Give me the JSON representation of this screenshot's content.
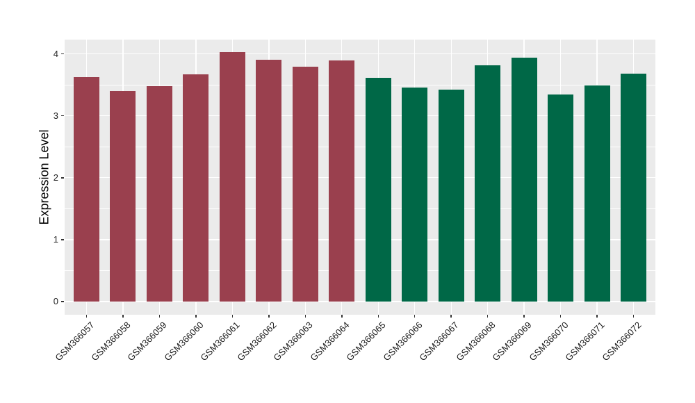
{
  "chart_data": {
    "type": "bar",
    "title": "",
    "xlabel": "",
    "ylabel": "Expression Level",
    "categories": [
      "GSM366057",
      "GSM366058",
      "GSM366059",
      "GSM366060",
      "GSM366061",
      "GSM366062",
      "GSM366063",
      "GSM366064",
      "GSM366065",
      "GSM366066",
      "GSM366067",
      "GSM366068",
      "GSM366069",
      "GSM366070",
      "GSM366071",
      "GSM366072"
    ],
    "values": [
      3.63,
      3.4,
      3.48,
      3.67,
      4.03,
      3.91,
      3.79,
      3.9,
      3.61,
      3.46,
      3.42,
      3.82,
      3.94,
      3.34,
      3.49,
      3.68
    ],
    "bar_colors": [
      "#9A404E",
      "#9A404E",
      "#9A404E",
      "#9A404E",
      "#9A404E",
      "#9A404E",
      "#9A404E",
      "#9A404E",
      "#006847",
      "#006847",
      "#006847",
      "#006847",
      "#006847",
      "#006847",
      "#006847",
      "#006847"
    ],
    "groups": [
      {
        "color": "#9A404E",
        "categories": [
          "GSM366057",
          "GSM366058",
          "GSM366059",
          "GSM366060",
          "GSM366061",
          "GSM366062",
          "GSM366063",
          "GSM366064"
        ]
      },
      {
        "color": "#006847",
        "categories": [
          "GSM366065",
          "GSM366066",
          "GSM366067",
          "GSM366068",
          "GSM366069",
          "GSM366070",
          "GSM366071",
          "GSM366072"
        ]
      }
    ],
    "yticks": [
      0,
      1,
      2,
      3,
      4
    ],
    "ytick_labels": [
      "0",
      "1",
      "2",
      "3",
      "4"
    ],
    "ylim": [
      -0.2,
      4.24
    ],
    "grid": {
      "major": true,
      "minor": true,
      "color": "#FFFFFF"
    },
    "panel_background": "#EBEBEB",
    "legend": "none",
    "x_tick_rotation": 45
  }
}
